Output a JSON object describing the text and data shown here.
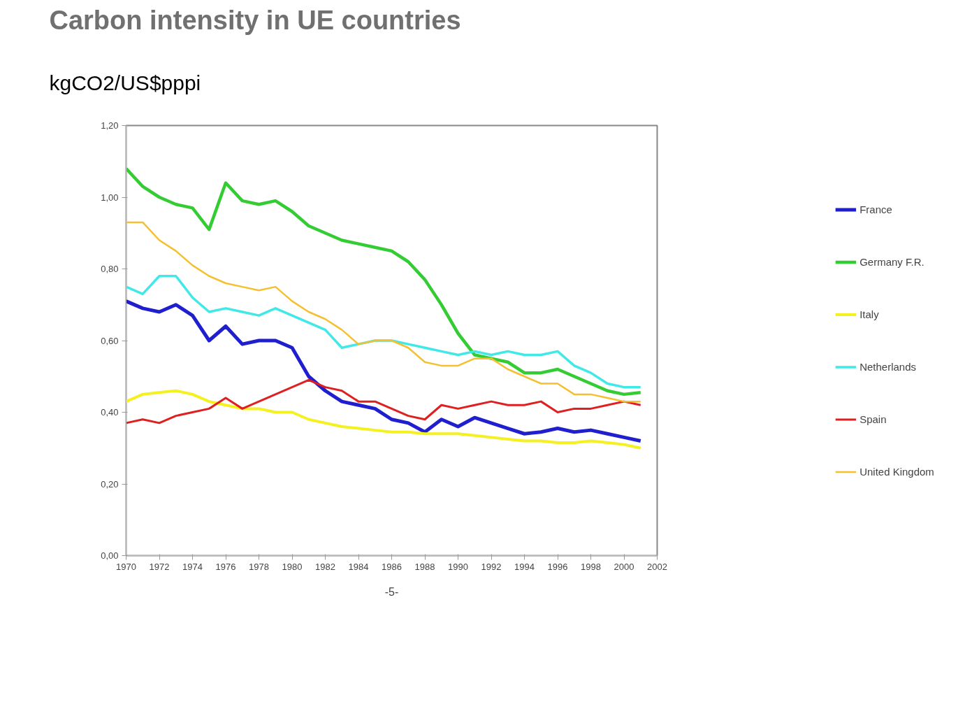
{
  "chart_data": {
    "type": "line",
    "title": "Carbon intensity in UE countries",
    "subtitle": "kgCO2/US$pppi",
    "x": [
      1970,
      1971,
      1972,
      1973,
      1974,
      1975,
      1976,
      1977,
      1978,
      1979,
      1980,
      1981,
      1982,
      1983,
      1984,
      1985,
      1986,
      1987,
      1988,
      1989,
      1990,
      1991,
      1992,
      1993,
      1994,
      1995,
      1996,
      1997,
      1998,
      1999,
      2000,
      2001
    ],
    "series": [
      {
        "name": "France",
        "color": "#1f1fd0",
        "values": [
          0.71,
          0.69,
          0.68,
          0.7,
          0.67,
          0.6,
          0.64,
          0.59,
          0.6,
          0.6,
          0.58,
          0.5,
          0.46,
          0.43,
          0.42,
          0.41,
          0.38,
          0.37,
          0.345,
          0.38,
          0.36,
          0.385,
          0.37,
          0.355,
          0.34,
          0.345,
          0.355,
          0.345,
          0.35,
          0.34,
          0.33,
          0.32
        ]
      },
      {
        "name": "Germany F.R.",
        "color": "#33cc33",
        "values": [
          1.08,
          1.03,
          1.0,
          0.98,
          0.97,
          0.91,
          1.04,
          0.99,
          0.98,
          0.99,
          0.96,
          0.92,
          0.9,
          0.88,
          0.87,
          0.86,
          0.85,
          0.82,
          0.77,
          0.7,
          0.62,
          0.56,
          0.55,
          0.54,
          0.51,
          0.51,
          0.52,
          0.5,
          0.48,
          0.46,
          0.45,
          0.455
        ]
      },
      {
        "name": "Italy",
        "color": "#f5f020",
        "values": [
          0.43,
          0.45,
          0.455,
          0.46,
          0.45,
          0.43,
          0.42,
          0.41,
          0.41,
          0.4,
          0.4,
          0.38,
          0.37,
          0.36,
          0.355,
          0.35,
          0.345,
          0.345,
          0.34,
          0.34,
          0.34,
          0.335,
          0.33,
          0.325,
          0.32,
          0.32,
          0.315,
          0.315,
          0.32,
          0.315,
          0.31,
          0.3
        ]
      },
      {
        "name": "Netherlands",
        "color": "#40e8e8",
        "values": [
          0.75,
          0.73,
          0.78,
          0.78,
          0.72,
          0.68,
          0.69,
          0.68,
          0.67,
          0.69,
          0.67,
          0.65,
          0.63,
          0.58,
          0.59,
          0.6,
          0.6,
          0.59,
          0.58,
          0.57,
          0.56,
          0.57,
          0.56,
          0.57,
          0.56,
          0.56,
          0.57,
          0.53,
          0.51,
          0.48,
          0.47,
          0.47
        ]
      },
      {
        "name": "Spain",
        "color": "#e02020",
        "values": [
          0.37,
          0.38,
          0.37,
          0.39,
          0.4,
          0.41,
          0.44,
          0.41,
          0.43,
          0.45,
          0.47,
          0.49,
          0.47,
          0.46,
          0.43,
          0.43,
          0.41,
          0.39,
          0.38,
          0.42,
          0.41,
          0.42,
          0.43,
          0.42,
          0.42,
          0.43,
          0.4,
          0.41,
          0.41,
          0.42,
          0.43,
          0.42
        ]
      },
      {
        "name": "United Kingdom",
        "color": "#f5c030",
        "values": [
          0.93,
          0.93,
          0.88,
          0.85,
          0.81,
          0.78,
          0.76,
          0.75,
          0.74,
          0.75,
          0.71,
          0.68,
          0.66,
          0.63,
          0.59,
          0.6,
          0.6,
          0.58,
          0.54,
          0.53,
          0.53,
          0.55,
          0.55,
          0.52,
          0.5,
          0.48,
          0.48,
          0.45,
          0.45,
          0.44,
          0.43,
          0.43
        ]
      }
    ],
    "xlim": [
      1970,
      2002
    ],
    "xticks": [
      1970,
      1972,
      1974,
      1976,
      1978,
      1980,
      1982,
      1984,
      1986,
      1988,
      1990,
      1992,
      1994,
      1996,
      1998,
      2000,
      2002
    ],
    "ylim": [
      0,
      1.2
    ],
    "yticks": [
      {
        "value": 0,
        "label": "0,00"
      },
      {
        "value": 0.2,
        "label": "0,20"
      },
      {
        "value": 0.4,
        "label": "0,40"
      },
      {
        "value": 0.6,
        "label": "0,60"
      },
      {
        "value": 0.8,
        "label": "0,80"
      },
      {
        "value": 1.0,
        "label": "1,00"
      },
      {
        "value": 1.2,
        "label": "1,20"
      }
    ],
    "grid": false,
    "legend": "right",
    "marker": "none",
    "line_style": "solid",
    "annotations": [
      "-5-"
    ]
  }
}
